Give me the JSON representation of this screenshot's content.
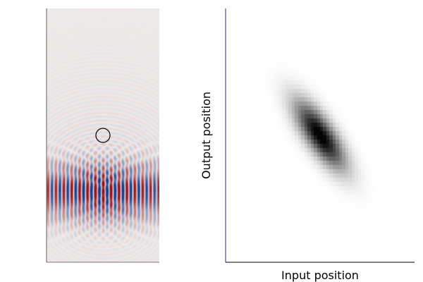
{
  "chart_data": [
    {
      "type": "heatmap",
      "description_field": "wave field",
      "title": "",
      "xlabel": "",
      "ylabel": "",
      "colormap": "diverging-red-white-blue",
      "background_color": "#efebea",
      "source_x": 0.5,
      "source_y": 0.28,
      "wavelength": 0.07,
      "obstacle": {
        "x": 0.5,
        "y": 0.5,
        "radius": 0.06
      },
      "grid": false
    },
    {
      "type": "heatmap",
      "title": "",
      "xlabel": "Input position",
      "ylabel": "Output position",
      "colormap": "greys",
      "xlim": [
        0,
        1
      ],
      "ylim": [
        0,
        1
      ],
      "peak": {
        "x": 0.5,
        "y": 0.5,
        "value": 1.0
      },
      "sigma_major": 0.12,
      "sigma_minor": 0.045,
      "orientation": "descending-diagonal",
      "grid": false
    }
  ]
}
